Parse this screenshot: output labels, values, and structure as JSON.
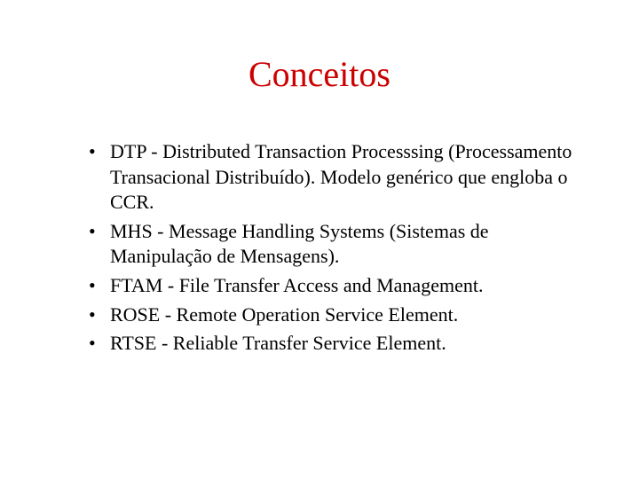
{
  "slide": {
    "title": "Conceitos",
    "title_color": "#cc0000",
    "title_fontsize": 40,
    "body_fontsize": 22,
    "body_color": "#000000",
    "background_color": "#ffffff",
    "bullets": [
      "DTP - Distributed Transaction Processsing (Processamento Transacional Distribuído). Modelo genérico que engloba o  CCR.",
      "MHS - Message Handling Systems (Sistemas de Manipulação de Mensagens).",
      "FTAM - File Transfer Access and Management.",
      "ROSE - Remote Operation Service Element.",
      "RTSE - Reliable Transfer Service Element."
    ]
  }
}
